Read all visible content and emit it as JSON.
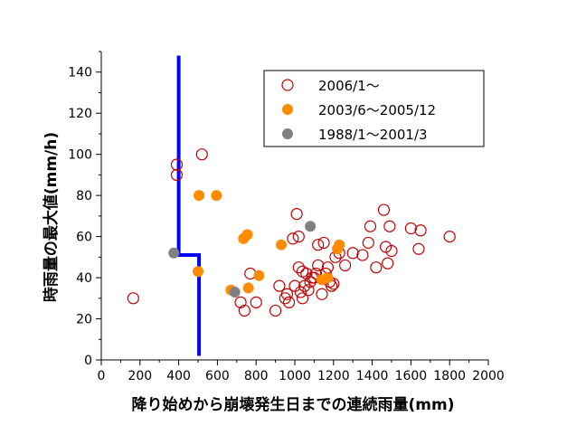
{
  "chart_data": {
    "type": "scatter",
    "xlabel": "降り始めから崩壊発生日までの連続雨量(mm)",
    "ylabel": "時雨量の最大値(mm/h)",
    "xlim": [
      0,
      2000
    ],
    "ylim": [
      0,
      150
    ],
    "x_ticks": [
      "0",
      "200",
      "400",
      "600",
      "800",
      "1000",
      "1200",
      "1400",
      "1600",
      "1800",
      "2000"
    ],
    "y_ticks": [
      "0",
      "20",
      "40",
      "60",
      "80",
      "100",
      "120",
      "140"
    ],
    "grid": false,
    "legend_position": "top-right",
    "series": [
      {
        "name": "2006/1〜",
        "marker": "open-circle",
        "color": "#c00000",
        "points": [
          [
            165,
            30
          ],
          [
            390,
            95
          ],
          [
            390,
            90
          ],
          [
            520,
            100
          ],
          [
            720,
            28
          ],
          [
            740,
            24
          ],
          [
            770,
            42
          ],
          [
            800,
            28
          ],
          [
            900,
            24
          ],
          [
            920,
            36
          ],
          [
            950,
            30
          ],
          [
            960,
            32
          ],
          [
            970,
            28
          ],
          [
            990,
            59
          ],
          [
            1000,
            36
          ],
          [
            1010,
            71
          ],
          [
            1020,
            60
          ],
          [
            1020,
            45
          ],
          [
            1030,
            33
          ],
          [
            1040,
            30
          ],
          [
            1040,
            43
          ],
          [
            1050,
            36
          ],
          [
            1060,
            42
          ],
          [
            1070,
            34
          ],
          [
            1080,
            38
          ],
          [
            1090,
            40
          ],
          [
            1100,
            40
          ],
          [
            1110,
            42
          ],
          [
            1120,
            46
          ],
          [
            1120,
            56
          ],
          [
            1140,
            32
          ],
          [
            1150,
            57
          ],
          [
            1160,
            42
          ],
          [
            1170,
            45
          ],
          [
            1180,
            38
          ],
          [
            1190,
            36
          ],
          [
            1200,
            37
          ],
          [
            1210,
            50
          ],
          [
            1230,
            52
          ],
          [
            1260,
            46
          ],
          [
            1300,
            52
          ],
          [
            1350,
            51
          ],
          [
            1380,
            57
          ],
          [
            1390,
            65
          ],
          [
            1420,
            45
          ],
          [
            1460,
            73
          ],
          [
            1470,
            55
          ],
          [
            1480,
            47
          ],
          [
            1490,
            65
          ],
          [
            1500,
            53
          ],
          [
            1600,
            64
          ],
          [
            1640,
            54
          ],
          [
            1650,
            63
          ],
          [
            1800,
            60
          ]
        ]
      },
      {
        "name": "2003/6〜2005/12",
        "marker": "filled-circle",
        "color": "#ff8c00",
        "points": [
          [
            500,
            43
          ],
          [
            505,
            80
          ],
          [
            595,
            80
          ],
          [
            670,
            34
          ],
          [
            735,
            59
          ],
          [
            755,
            61
          ],
          [
            760,
            35
          ],
          [
            815,
            41
          ],
          [
            930,
            56
          ],
          [
            1140,
            39
          ],
          [
            1170,
            40
          ],
          [
            1220,
            54
          ],
          [
            1230,
            56
          ]
        ]
      },
      {
        "name": "1988/1〜2001/3",
        "marker": "filled-circle",
        "color": "#808080",
        "points": [
          [
            375,
            52
          ],
          [
            690,
            33
          ],
          [
            1080,
            65
          ]
        ]
      }
    ],
    "boundary_line": {
      "color": "#0000ff",
      "points": [
        [
          400,
          148
        ],
        [
          400,
          51
        ],
        [
          505,
          51
        ],
        [
          505,
          2
        ]
      ]
    }
  }
}
